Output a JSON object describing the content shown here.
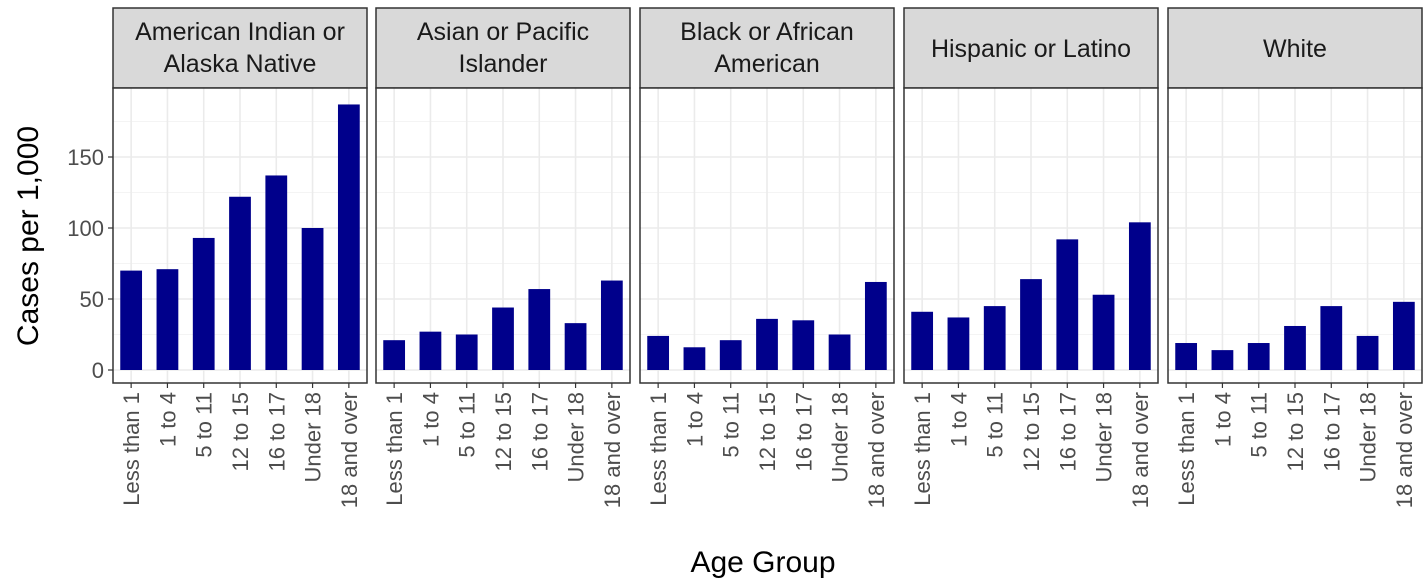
{
  "chart_data": {
    "type": "bar",
    "layout": "faceted",
    "xlabel": "Age Group",
    "ylabel": "Cases per 1,000",
    "ylim": [
      0,
      190
    ],
    "yticks": [
      0,
      50,
      100,
      150
    ],
    "grid": true,
    "categories": [
      "Less than 1",
      "1 to 4",
      "5 to 11",
      "12 to 15",
      "16 to 17",
      "Under 18",
      "18 and over"
    ],
    "facets": [
      {
        "label": [
          "American Indian or",
          "Alaska Native"
        ],
        "values": [
          70,
          71,
          93,
          122,
          137,
          100,
          187
        ]
      },
      {
        "label": [
          "Asian or Pacific",
          "Islander"
        ],
        "values": [
          21,
          27,
          25,
          44,
          57,
          33,
          63
        ]
      },
      {
        "label": [
          "Black or African",
          "American"
        ],
        "values": [
          24,
          16,
          21,
          36,
          35,
          25,
          62
        ]
      },
      {
        "label": [
          "Hispanic or Latino"
        ],
        "values": [
          41,
          37,
          45,
          64,
          92,
          53,
          104
        ]
      },
      {
        "label": [
          "White"
        ],
        "values": [
          19,
          14,
          19,
          31,
          45,
          24,
          48
        ]
      }
    ]
  },
  "colors": {
    "bar": "#00008b",
    "strip_fill": "#d9d9d9",
    "panel_border": "#333333",
    "grid_major": "#ebebeb",
    "grid_minor": "#f4f4f4"
  }
}
